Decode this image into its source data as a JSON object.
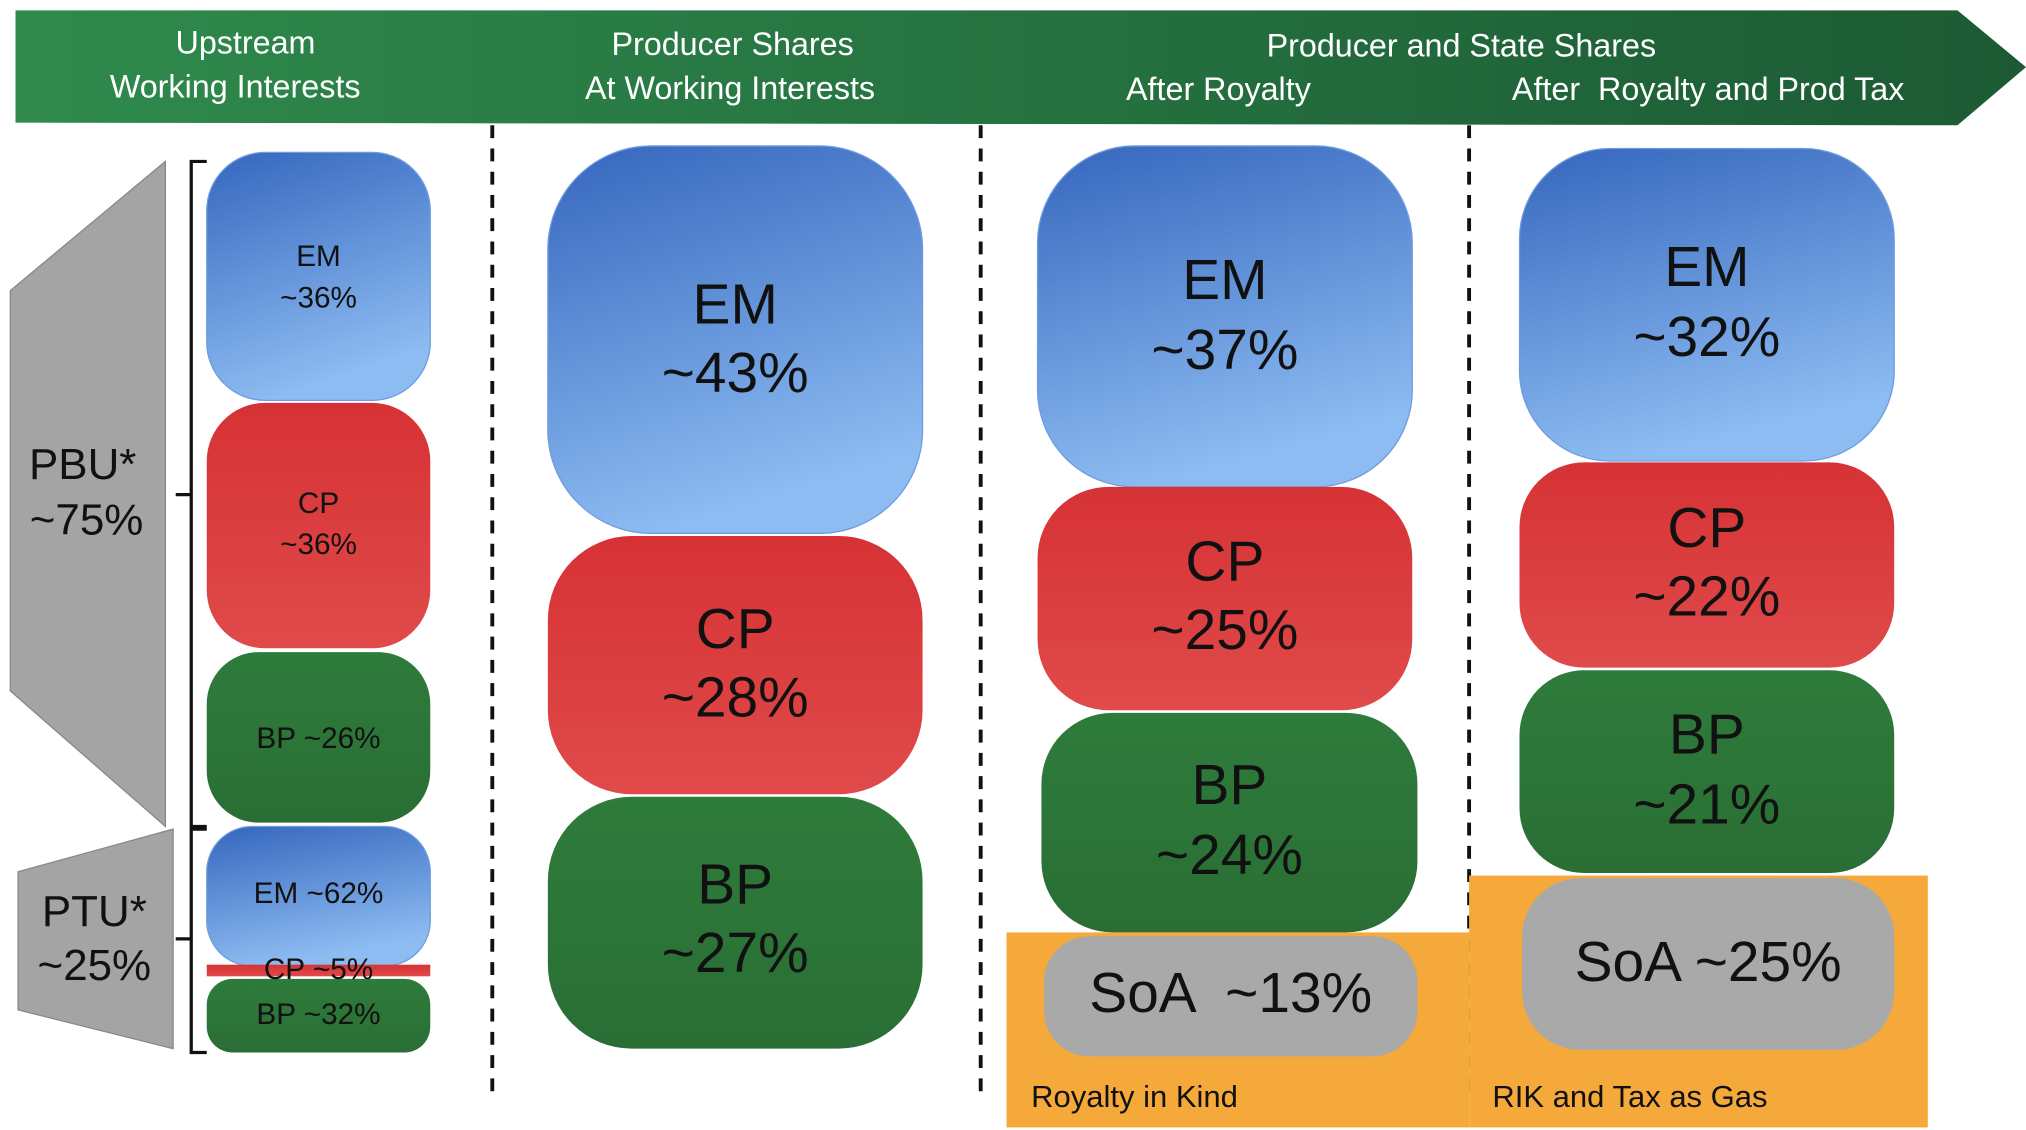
{
  "header": {
    "upstream": [
      "Upstream",
      "Working Interests"
    ],
    "producer": [
      "Producer Shares",
      "At Working Interests"
    ],
    "state": "Producer and State Shares",
    "after_royalty": "After Royalty",
    "after_tax": "After  Royalty and Prod Tax"
  },
  "units": [
    {
      "lines": [
        "PBU*",
        "~75%"
      ]
    },
    {
      "lines": [
        "PTU*",
        "~25%"
      ]
    }
  ],
  "columns": [
    {
      "blocks": [
        {
          "lines": [
            "EM",
            "~36%"
          ]
        },
        {
          "lines": [
            "CP",
            "~36%"
          ]
        },
        {
          "lines": [
            "BP ~26%"
          ]
        },
        {
          "lines": [
            "EM ~62%"
          ]
        },
        {
          "lines": [
            "CP ~5%"
          ]
        },
        {
          "lines": [
            "BP ~32%"
          ]
        }
      ]
    },
    {
      "blocks": [
        {
          "lines": [
            "EM",
            "~43%"
          ]
        },
        {
          "lines": [
            "CP",
            "~28%"
          ]
        },
        {
          "lines": [
            "BP",
            "~27%"
          ]
        }
      ]
    },
    {
      "blocks": [
        {
          "lines": [
            "EM",
            "~37%"
          ]
        },
        {
          "lines": [
            "CP",
            "~25%"
          ]
        },
        {
          "lines": [
            "BP",
            "~24%"
          ]
        },
        {
          "lines": [
            "SoA  ~13%"
          ]
        }
      ]
    },
    {
      "blocks": [
        {
          "lines": [
            "EM",
            "~32%"
          ]
        },
        {
          "lines": [
            "CP",
            "~22%"
          ]
        },
        {
          "lines": [
            "BP",
            "~21%"
          ]
        },
        {
          "lines": [
            "SoA ~25%"
          ]
        }
      ]
    }
  ],
  "notes": [
    "Royalty in Kind",
    "RIK and Tax as Gas"
  ]
}
